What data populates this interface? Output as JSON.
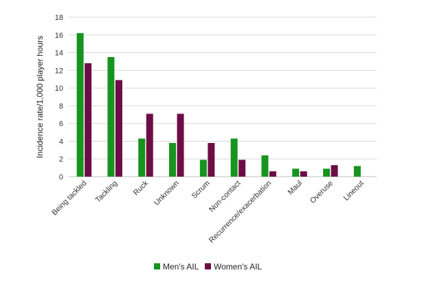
{
  "chart_data": {
    "type": "bar",
    "title": "",
    "xlabel": "",
    "ylabel": "Incidence rate/1,000 player hours",
    "ylim": [
      0,
      18
    ],
    "yticks": [
      0,
      2,
      4,
      6,
      8,
      10,
      12,
      14,
      16,
      18
    ],
    "grid": true,
    "legend_position": "bottom",
    "categories": [
      "Being tackled",
      "Tackling",
      "Ruck",
      "Unknown",
      "Scrum",
      "Non-contact",
      "Recurrence/exacerbation",
      "Maul",
      "Overuse",
      "Lineout"
    ],
    "series": [
      {
        "name": "Men's AIL",
        "color": "#16941e",
        "values": [
          16.2,
          13.5,
          4.3,
          3.8,
          1.9,
          4.3,
          2.4,
          0.9,
          0.9,
          1.2
        ]
      },
      {
        "name": "Women's AIL",
        "color": "#6e0d45",
        "values": [
          12.8,
          10.9,
          7.1,
          7.1,
          3.8,
          1.9,
          0.6,
          0.6,
          1.3,
          0
        ]
      }
    ]
  }
}
